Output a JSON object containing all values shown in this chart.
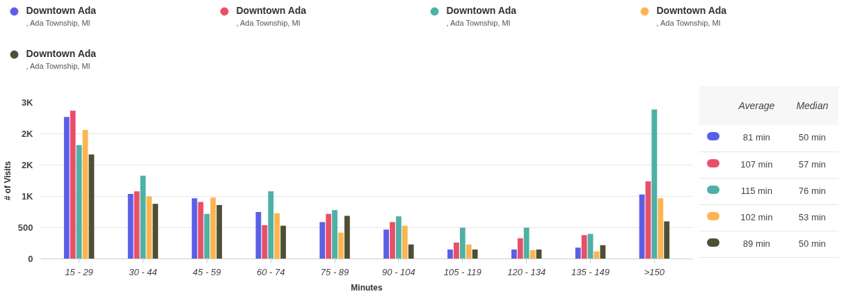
{
  "chart_data": {
    "type": "bar",
    "xlabel": "Minutes",
    "ylabel": "# of Visits",
    "categories": [
      "15 - 29",
      "30 - 44",
      "45 - 59",
      "60 - 74",
      "75 - 89",
      "90 - 104",
      "105 - 119",
      "120 - 134",
      "135 - 149",
      ">150"
    ],
    "series": [
      {
        "name": "Downtown Ada\n, Ada Township, MI",
        "color": "#5b5fe6",
        "values": [
          2270,
          1040,
          970,
          750,
          590,
          470,
          150,
          150,
          180,
          1030
        ]
      },
      {
        "name": "Downtown Ada\n, Ada Township, MI",
        "color": "#e8506a",
        "values": [
          2370,
          1080,
          910,
          540,
          720,
          590,
          260,
          330,
          380,
          1240
        ]
      },
      {
        "name": "Downtown Ada\n, Ada Township, MI",
        "color": "#4fb0a5",
        "values": [
          1820,
          1330,
          720,
          1080,
          780,
          680,
          500,
          500,
          400,
          2390
        ]
      },
      {
        "name": "Downtown Ada\n, Ada Township, MI",
        "color": "#fbb650",
        "values": [
          2060,
          1000,
          980,
          730,
          420,
          530,
          230,
          140,
          120,
          970
        ]
      },
      {
        "name": "Downtown Ada\n, Ada Township, MI",
        "color": "#4f4f35",
        "values": [
          1670,
          880,
          860,
          530,
          690,
          230,
          150,
          150,
          220,
          600
        ]
      }
    ],
    "ylim": [
      0,
      2500
    ],
    "yticks": [
      0,
      500,
      {
        "value": 1000,
        "label": "1K"
      },
      {
        "value": 1500,
        "label": "2K"
      },
      {
        "value": 2000,
        "label": "2K"
      },
      {
        "value": 2500,
        "label": "3K"
      }
    ],
    "grid": "y",
    "legend": "top",
    "annotations": [
      "Average",
      "Median",
      "81 min",
      "50 min",
      "107 min",
      "57 min",
      "115 min",
      "76 min",
      "102 min",
      "53 min",
      "89 min",
      "50 min"
    ]
  }
}
